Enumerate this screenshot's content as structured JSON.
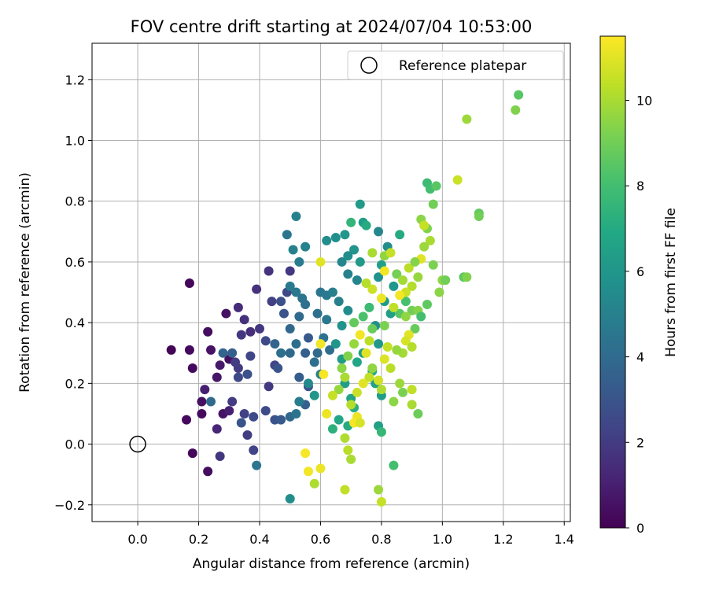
{
  "chart_data": {
    "type": "scatter",
    "title": "FOV centre drift starting at 2024/07/04 10:53:00",
    "xlabel": "Angular distance from reference (arcmin)",
    "ylabel": "Rotation from reference (arcmin)",
    "xlim": [
      -0.15,
      1.42
    ],
    "ylim": [
      -0.255,
      1.32
    ],
    "xticks": [
      0.0,
      0.2,
      0.4,
      0.6,
      0.8,
      1.0,
      1.2,
      1.4
    ],
    "xtick_labels": [
      "0.0",
      "0.2",
      "0.4",
      "0.6",
      "0.8",
      "1.0",
      "1.2",
      "1.4"
    ],
    "yticks": [
      -0.2,
      0.0,
      0.2,
      0.4,
      0.6,
      0.8,
      1.0,
      1.2
    ],
    "ytick_labels": [
      "−0.2",
      "0.0",
      "0.2",
      "0.4",
      "0.6",
      "0.8",
      "1.0",
      "1.2"
    ],
    "grid": true,
    "legend": {
      "position": "top-right",
      "entries": [
        "Reference platepar"
      ]
    },
    "reference_point": {
      "x": 0.0,
      "y": 0.0,
      "label": "Reference platepar"
    },
    "colorbar": {
      "label": "Hours from first FF file",
      "colormap": "viridis",
      "range": [
        0,
        11.5
      ],
      "ticks": [
        0,
        2,
        4,
        6,
        8,
        10
      ],
      "tick_labels": [
        "0",
        "2",
        "4",
        "6",
        "8",
        "10"
      ]
    },
    "points": [
      [
        0.17,
        0.53,
        0.2
      ],
      [
        0.11,
        0.31,
        0.1
      ],
      [
        0.17,
        0.31,
        0.3
      ],
      [
        0.18,
        0.25,
        0.3
      ],
      [
        0.23,
        0.37,
        0.4
      ],
      [
        0.24,
        0.31,
        0.6
      ],
      [
        0.21,
        0.14,
        0.5
      ],
      [
        0.21,
        0.1,
        0.3
      ],
      [
        0.18,
        -0.03,
        0.2
      ],
      [
        0.23,
        -0.09,
        0.4
      ],
      [
        0.29,
        0.43,
        0.5
      ],
      [
        0.3,
        0.28,
        0.5
      ],
      [
        0.27,
        0.26,
        0.8
      ],
      [
        0.26,
        0.22,
        0.7
      ],
      [
        0.22,
        0.18,
        1.0
      ],
      [
        0.28,
        0.1,
        0.6
      ],
      [
        0.3,
        0.11,
        1.0
      ],
      [
        0.26,
        0.05,
        1.2
      ],
      [
        0.27,
        -0.04,
        1.8
      ],
      [
        0.16,
        0.08,
        0.3
      ],
      [
        0.33,
        0.45,
        1.4
      ],
      [
        0.35,
        0.41,
        1.6
      ],
      [
        0.37,
        0.37,
        1.5
      ],
      [
        0.34,
        0.36,
        1.8
      ],
      [
        0.32,
        0.27,
        2.0
      ],
      [
        0.33,
        0.22,
        2.5
      ],
      [
        0.36,
        0.23,
        2.8
      ],
      [
        0.37,
        0.29,
        2.4
      ],
      [
        0.35,
        0.1,
        2.2
      ],
      [
        0.38,
        0.09,
        2.6
      ],
      [
        0.34,
        0.07,
        3.0
      ],
      [
        0.36,
        0.03,
        2.0
      ],
      [
        0.38,
        -0.02,
        2.3
      ],
      [
        0.39,
        -0.07,
        4.5
      ],
      [
        0.4,
        0.38,
        1.8
      ],
      [
        0.42,
        0.34,
        2.5
      ],
      [
        0.39,
        0.51,
        1.6
      ],
      [
        0.43,
        0.57,
        1.7
      ],
      [
        0.44,
        0.47,
        2.2
      ],
      [
        0.43,
        0.19,
        1.9
      ],
      [
        0.45,
        0.26,
        2.4
      ],
      [
        0.46,
        0.25,
        3.0
      ],
      [
        0.42,
        0.11,
        2.6
      ],
      [
        0.45,
        0.08,
        3.0
      ],
      [
        0.47,
        0.08,
        3.2
      ],
      [
        0.31,
        0.3,
        3.5
      ],
      [
        0.28,
        0.3,
        3.7
      ],
      [
        0.24,
        0.14,
        4.0
      ],
      [
        0.31,
        0.14,
        2.0
      ],
      [
        0.33,
        0.25,
        2.0
      ],
      [
        0.48,
        0.43,
        3.0
      ],
      [
        0.47,
        0.47,
        2.8
      ],
      [
        0.49,
        0.5,
        2.5
      ],
      [
        0.5,
        0.57,
        1.9
      ],
      [
        0.49,
        0.69,
        4.5
      ],
      [
        0.52,
        0.75,
        5.0
      ],
      [
        0.51,
        0.64,
        5.0
      ],
      [
        0.53,
        0.6,
        4.8
      ],
      [
        0.55,
        0.65,
        5.1
      ],
      [
        0.5,
        0.52,
        4.7
      ],
      [
        0.52,
        0.5,
        4.6
      ],
      [
        0.54,
        0.48,
        4.4
      ],
      [
        0.55,
        0.46,
        4.2
      ],
      [
        0.53,
        0.42,
        4.0
      ],
      [
        0.5,
        0.38,
        3.8
      ],
      [
        0.52,
        0.33,
        4.1
      ],
      [
        0.55,
        0.3,
        3.5
      ],
      [
        0.56,
        0.35,
        3.2
      ],
      [
        0.5,
        0.3,
        3.9
      ],
      [
        0.47,
        0.3,
        4.2
      ],
      [
        0.45,
        0.33,
        3.7
      ],
      [
        0.53,
        0.22,
        3.4
      ],
      [
        0.56,
        0.19,
        3.0
      ],
      [
        0.55,
        0.13,
        3.5
      ],
      [
        0.5,
        0.09,
        3.9
      ],
      [
        0.52,
        0.1,
        4.4
      ],
      [
        0.53,
        0.14,
        4.8
      ],
      [
        0.5,
        -0.18,
        5.6
      ],
      [
        0.59,
        0.3,
        4.0
      ],
      [
        0.59,
        0.43,
        4.3
      ],
      [
        0.6,
        0.5,
        4.5
      ],
      [
        0.62,
        0.49,
        4.7
      ],
      [
        0.64,
        0.5,
        4.9
      ],
      [
        0.66,
        0.47,
        5.0
      ],
      [
        0.62,
        0.41,
        4.6
      ],
      [
        0.61,
        0.35,
        4.3
      ],
      [
        0.63,
        0.31,
        4.1
      ],
      [
        0.58,
        0.27,
        4.2
      ],
      [
        0.6,
        0.23,
        5.0
      ],
      [
        0.58,
        0.16,
        6.0
      ],
      [
        0.56,
        0.2,
        5.4
      ],
      [
        0.62,
        0.67,
        5.5
      ],
      [
        0.65,
        0.68,
        5.7
      ],
      [
        0.68,
        0.69,
        6.0
      ],
      [
        0.67,
        0.6,
        5.3
      ],
      [
        0.69,
        0.62,
        5.6
      ],
      [
        0.71,
        0.64,
        5.9
      ],
      [
        0.73,
        0.6,
        6.2
      ],
      [
        0.69,
        0.56,
        5.0
      ],
      [
        0.72,
        0.54,
        5.2
      ],
      [
        0.69,
        0.44,
        5.5
      ],
      [
        0.67,
        0.39,
        5.8
      ],
      [
        0.65,
        0.33,
        6.0
      ],
      [
        0.67,
        0.28,
        6.2
      ],
      [
        0.68,
        0.2,
        6.4
      ],
      [
        0.7,
        0.15,
        6.7
      ],
      [
        0.66,
        0.08,
        6.8
      ],
      [
        0.69,
        0.06,
        7.0
      ],
      [
        0.64,
        0.05,
        7.3
      ],
      [
        0.71,
        0.12,
        7.2
      ],
      [
        0.73,
        0.79,
        6.2
      ],
      [
        0.74,
        0.73,
        6.3
      ],
      [
        0.75,
        0.72,
        7.0
      ],
      [
        0.7,
        0.73,
        7.5
      ],
      [
        0.79,
        0.7,
        5.3
      ],
      [
        0.82,
        0.65,
        5.6
      ],
      [
        0.8,
        0.59,
        6.5
      ],
      [
        0.79,
        0.55,
        5.8
      ],
      [
        0.84,
        0.52,
        6.0
      ],
      [
        0.86,
        0.69,
        7.0
      ],
      [
        0.81,
        0.47,
        6.3
      ],
      [
        0.83,
        0.43,
        6.5
      ],
      [
        0.78,
        0.39,
        5.7
      ],
      [
        0.79,
        0.33,
        6.1
      ],
      [
        0.74,
        0.3,
        6.4
      ],
      [
        0.72,
        0.27,
        6.8
      ],
      [
        0.77,
        0.24,
        7.0
      ],
      [
        0.78,
        0.2,
        6.6
      ],
      [
        0.8,
        0.16,
        6.3
      ],
      [
        0.79,
        0.06,
        6.5
      ],
      [
        0.8,
        0.04,
        7.6
      ],
      [
        0.84,
        -0.07,
        8.0
      ],
      [
        0.76,
        0.45,
        7.8
      ],
      [
        0.74,
        0.42,
        8.2
      ],
      [
        0.71,
        0.4,
        8.7
      ],
      [
        0.77,
        0.38,
        8.9
      ],
      [
        0.81,
        0.39,
        9.2
      ],
      [
        0.86,
        0.43,
        8.5
      ],
      [
        0.88,
        0.47,
        8.1
      ],
      [
        0.9,
        0.44,
        9.0
      ],
      [
        0.95,
        0.86,
        7.8
      ],
      [
        0.96,
        0.84,
        8.0
      ],
      [
        0.98,
        0.85,
        8.5
      ],
      [
        0.97,
        0.79,
        9.0
      ],
      [
        0.93,
        0.74,
        9.5
      ],
      [
        0.95,
        0.71,
        9.3
      ],
      [
        0.94,
        0.72,
        10.5
      ],
      [
        0.96,
        0.67,
        10.0
      ],
      [
        0.94,
        0.65,
        9.8
      ],
      [
        0.93,
        0.61,
        11.0
      ],
      [
        0.97,
        0.59,
        9.2
      ],
      [
        0.92,
        0.55,
        9.7
      ],
      [
        0.9,
        0.52,
        10.2
      ],
      [
        0.88,
        0.5,
        10.6
      ],
      [
        0.86,
        0.49,
        11.3
      ],
      [
        0.84,
        0.45,
        10.4
      ],
      [
        0.88,
        0.42,
        9.6
      ],
      [
        0.92,
        0.44,
        9.4
      ],
      [
        0.95,
        0.46,
        8.6
      ],
      [
        0.99,
        0.5,
        9.5
      ],
      [
        1.0,
        0.54,
        9.6
      ],
      [
        1.01,
        0.54,
        9.0
      ],
      [
        1.07,
        0.55,
        8.6
      ],
      [
        1.08,
        0.55,
        9.3
      ],
      [
        1.05,
        0.87,
        10.6
      ],
      [
        1.08,
        1.07,
        9.8
      ],
      [
        1.12,
        0.76,
        8.7
      ],
      [
        1.12,
        0.75,
        9.0
      ],
      [
        1.24,
        1.1,
        9.3
      ],
      [
        1.25,
        1.15,
        8.5
      ],
      [
        0.93,
        0.42,
        8.0
      ],
      [
        0.91,
        0.38,
        8.8
      ],
      [
        0.89,
        0.36,
        11.0
      ],
      [
        0.88,
        0.34,
        10.8
      ],
      [
        0.9,
        0.32,
        10.2
      ],
      [
        0.87,
        0.3,
        9.9
      ],
      [
        0.85,
        0.31,
        9.7
      ],
      [
        0.82,
        0.32,
        10.5
      ],
      [
        0.81,
        0.28,
        10.9
      ],
      [
        0.83,
        0.25,
        10.3
      ],
      [
        0.86,
        0.2,
        9.8
      ],
      [
        0.87,
        0.17,
        9.2
      ],
      [
        0.9,
        0.13,
        10.0
      ],
      [
        0.92,
        0.1,
        8.9
      ],
      [
        0.9,
        0.18,
        10.4
      ],
      [
        0.84,
        0.14,
        9.5
      ],
      [
        0.8,
        0.18,
        10.1
      ],
      [
        0.79,
        0.21,
        10.7
      ],
      [
        0.77,
        0.25,
        9.6
      ],
      [
        0.76,
        0.22,
        10.4
      ],
      [
        0.74,
        0.2,
        11.0
      ],
      [
        0.72,
        0.17,
        10.6
      ],
      [
        0.7,
        0.13,
        10.2
      ],
      [
        0.72,
        0.09,
        11.2
      ],
      [
        0.71,
        0.07,
        11.4
      ],
      [
        0.73,
        0.07,
        10.8
      ],
      [
        0.75,
        0.3,
        11.0
      ],
      [
        0.76,
        0.34,
        10.3
      ],
      [
        0.73,
        0.36,
        11.3
      ],
      [
        0.71,
        0.33,
        9.7
      ],
      [
        0.69,
        0.29,
        9.3
      ],
      [
        0.67,
        0.25,
        9.5
      ],
      [
        0.68,
        0.22,
        10.0
      ],
      [
        0.66,
        0.18,
        9.7
      ],
      [
        0.64,
        0.16,
        10.5
      ],
      [
        0.62,
        0.1,
        11.2
      ],
      [
        0.6,
        0.33,
        11.3
      ],
      [
        0.61,
        0.23,
        11.4
      ],
      [
        0.6,
        0.6,
        11.0
      ],
      [
        0.68,
        0.02,
        10.1
      ],
      [
        0.69,
        -0.02,
        10.3
      ],
      [
        0.7,
        -0.05,
        10.0
      ],
      [
        0.68,
        -0.15,
        10.4
      ],
      [
        0.8,
        -0.19,
        10.5
      ],
      [
        0.79,
        -0.15,
        9.8
      ],
      [
        0.6,
        -0.08,
        11.2
      ],
      [
        0.58,
        -0.13,
        10.1
      ],
      [
        0.56,
        -0.09,
        11.3
      ],
      [
        0.55,
        -0.03,
        11.4
      ],
      [
        0.8,
        0.48,
        11.2
      ],
      [
        0.81,
        0.57,
        11.3
      ],
      [
        0.77,
        0.51,
        10.6
      ],
      [
        0.75,
        0.53,
        10.2
      ],
      [
        0.77,
        0.63,
        10.0
      ],
      [
        0.81,
        0.62,
        9.6
      ],
      [
        0.83,
        0.63,
        10.5
      ],
      [
        0.85,
        0.56,
        9.1
      ],
      [
        0.87,
        0.54,
        9.9
      ],
      [
        0.89,
        0.58,
        10.3
      ],
      [
        0.91,
        0.6,
        9.4
      ]
    ]
  }
}
